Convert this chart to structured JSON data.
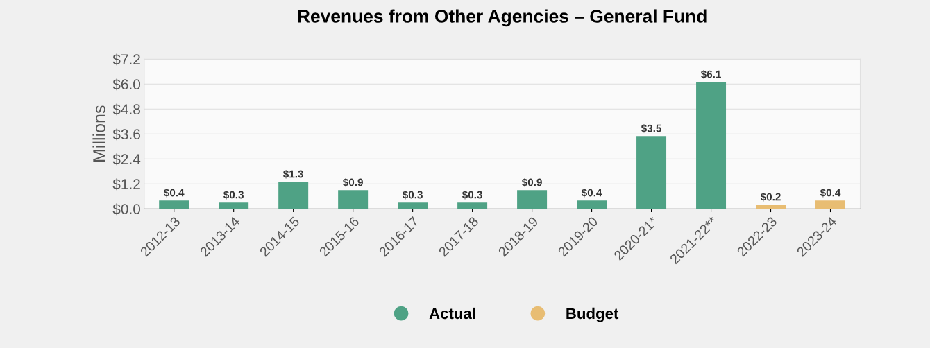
{
  "chart_data": {
    "type": "bar",
    "title": "Revenues from Other Agencies – General Fund",
    "ylabel": "Millions",
    "categories": [
      "2012-13",
      "2013-14",
      "2014-15",
      "2015-16",
      "2016-17",
      "2017-18",
      "2018-19",
      "2019-20",
      "2020-21*",
      "2021-22**",
      "2022-23",
      "2023-24"
    ],
    "series": [
      {
        "name": "Actual",
        "color": "#4fa285",
        "values": [
          0.4,
          0.3,
          1.3,
          0.9,
          0.3,
          0.3,
          0.9,
          0.4,
          3.5,
          6.1,
          null,
          null
        ],
        "value_labels": [
          "$0.4",
          "$0.3",
          "$1.3",
          "$0.9",
          "$0.3",
          "$0.3",
          "$0.9",
          "$0.4",
          "$3.5",
          "$6.1",
          null,
          null
        ]
      },
      {
        "name": "Budget",
        "color": "#e8bd73",
        "values": [
          null,
          null,
          null,
          null,
          null,
          null,
          null,
          null,
          null,
          null,
          0.2,
          0.4
        ],
        "value_labels": [
          null,
          null,
          null,
          null,
          null,
          null,
          null,
          null,
          null,
          null,
          "$0.2",
          "$0.4"
        ]
      }
    ],
    "ylim": [
      0,
      7.2
    ],
    "yticks": [
      {
        "value": 0,
        "label": "$0.0"
      },
      {
        "value": 1.2,
        "label": "$1.2"
      },
      {
        "value": 2.4,
        "label": "$2.4"
      },
      {
        "value": 3.6,
        "label": "$3.6"
      },
      {
        "value": 4.8,
        "label": "$4.8"
      },
      {
        "value": 6.0,
        "label": "$6.0"
      },
      {
        "value": 7.2,
        "label": "$7.2"
      }
    ],
    "grid": "y",
    "legend": "bottom"
  }
}
